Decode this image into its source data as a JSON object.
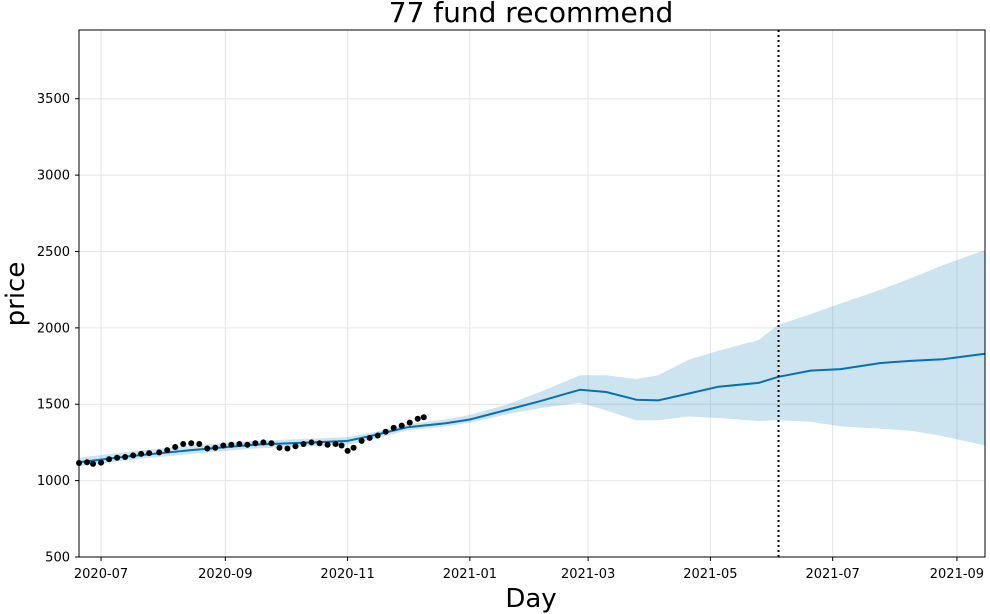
{
  "chart_data": {
    "type": "line",
    "title": "77 fund recommend",
    "xlabel": "Day",
    "ylabel": "price",
    "x_range": [
      "2020-06-20",
      "2021-09-15"
    ],
    "ylim": [
      500,
      3950
    ],
    "grid": true,
    "x_ticks": [
      "2020-07-01",
      "2020-09-01",
      "2020-11-01",
      "2021-01-01",
      "2021-03-01",
      "2021-05-01",
      "2021-07-01",
      "2021-09-01"
    ],
    "x_tick_labels": [
      "2020-07",
      "2020-09",
      "2020-11",
      "2021-01",
      "2021-03",
      "2021-05",
      "2021-07",
      "2021-09"
    ],
    "y_ticks": [
      500,
      1000,
      1500,
      2000,
      2500,
      3000,
      3500
    ],
    "y_tick_labels": [
      "500",
      "1000",
      "1500",
      "2000",
      "2500",
      "3000",
      "3500"
    ],
    "vline": "2021-06-04",
    "colors": {
      "forecast": "#0072B2",
      "band": "#0072B2",
      "observed": "#000000",
      "grid": "#e5e5e5",
      "vline": "#000000"
    },
    "observed": [
      [
        "2020-06-20",
        1115
      ],
      [
        "2020-06-24",
        1120
      ],
      [
        "2020-06-27",
        1110
      ],
      [
        "2020-07-01",
        1118
      ],
      [
        "2020-07-05",
        1140
      ],
      [
        "2020-07-09",
        1150
      ],
      [
        "2020-07-13",
        1155
      ],
      [
        "2020-07-17",
        1165
      ],
      [
        "2020-07-21",
        1175
      ],
      [
        "2020-07-25",
        1180
      ],
      [
        "2020-07-30",
        1185
      ],
      [
        "2020-08-03",
        1200
      ],
      [
        "2020-08-07",
        1220
      ],
      [
        "2020-08-11",
        1240
      ],
      [
        "2020-08-15",
        1245
      ],
      [
        "2020-08-19",
        1240
      ],
      [
        "2020-08-23",
        1210
      ],
      [
        "2020-08-27",
        1215
      ],
      [
        "2020-08-31",
        1230
      ],
      [
        "2020-09-04",
        1235
      ],
      [
        "2020-09-08",
        1240
      ],
      [
        "2020-09-12",
        1235
      ],
      [
        "2020-09-16",
        1245
      ],
      [
        "2020-09-20",
        1250
      ],
      [
        "2020-09-24",
        1245
      ],
      [
        "2020-09-28",
        1215
      ],
      [
        "2020-10-02",
        1210
      ],
      [
        "2020-10-06",
        1225
      ],
      [
        "2020-10-10",
        1240
      ],
      [
        "2020-10-14",
        1250
      ],
      [
        "2020-10-18",
        1245
      ],
      [
        "2020-10-22",
        1235
      ],
      [
        "2020-10-26",
        1240
      ],
      [
        "2020-10-29",
        1230
      ],
      [
        "2020-11-01",
        1195
      ],
      [
        "2020-11-04",
        1215
      ],
      [
        "2020-11-08",
        1260
      ],
      [
        "2020-11-12",
        1280
      ],
      [
        "2020-11-16",
        1295
      ],
      [
        "2020-11-20",
        1320
      ],
      [
        "2020-11-24",
        1345
      ],
      [
        "2020-11-28",
        1360
      ],
      [
        "2020-12-02",
        1380
      ],
      [
        "2020-12-06",
        1405
      ],
      [
        "2020-12-09",
        1415
      ]
    ],
    "forecast": [
      [
        "2020-06-20",
        1120
      ],
      [
        "2020-07-15",
        1160
      ],
      [
        "2020-08-15",
        1200
      ],
      [
        "2020-09-15",
        1235
      ],
      [
        "2020-10-15",
        1250
      ],
      [
        "2020-11-01",
        1260
      ],
      [
        "2020-11-15",
        1300
      ],
      [
        "2020-12-01",
        1350
      ],
      [
        "2020-12-20",
        1375
      ],
      [
        "2021-01-01",
        1400
      ],
      [
        "2021-01-20",
        1465
      ],
      [
        "2021-02-05",
        1520
      ],
      [
        "2021-02-25",
        1595
      ],
      [
        "2021-03-10",
        1580
      ],
      [
        "2021-03-25",
        1530
      ],
      [
        "2021-04-05",
        1525
      ],
      [
        "2021-04-20",
        1570
      ],
      [
        "2021-05-05",
        1615
      ],
      [
        "2021-05-25",
        1640
      ],
      [
        "2021-06-04",
        1680
      ],
      [
        "2021-06-20",
        1720
      ],
      [
        "2021-07-05",
        1730
      ],
      [
        "2021-07-25",
        1770
      ],
      [
        "2021-08-10",
        1785
      ],
      [
        "2021-08-25",
        1795
      ],
      [
        "2021-09-15",
        1830
      ]
    ],
    "upper": [
      [
        "2020-06-20",
        1150
      ],
      [
        "2020-07-15",
        1190
      ],
      [
        "2020-08-15",
        1230
      ],
      [
        "2020-09-15",
        1260
      ],
      [
        "2020-10-15",
        1275
      ],
      [
        "2020-11-01",
        1285
      ],
      [
        "2020-11-15",
        1320
      ],
      [
        "2020-12-01",
        1370
      ],
      [
        "2020-12-20",
        1400
      ],
      [
        "2021-01-01",
        1430
      ],
      [
        "2021-01-20",
        1500
      ],
      [
        "2021-02-05",
        1580
      ],
      [
        "2021-02-25",
        1690
      ],
      [
        "2021-03-10",
        1690
      ],
      [
        "2021-03-25",
        1665
      ],
      [
        "2021-04-05",
        1690
      ],
      [
        "2021-04-20",
        1790
      ],
      [
        "2021-05-05",
        1850
      ],
      [
        "2021-05-25",
        1920
      ],
      [
        "2021-06-04",
        2020
      ],
      [
        "2021-06-20",
        2090
      ],
      [
        "2021-07-05",
        2160
      ],
      [
        "2021-07-25",
        2250
      ],
      [
        "2021-08-10",
        2330
      ],
      [
        "2021-08-25",
        2410
      ],
      [
        "2021-09-15",
        2510
      ]
    ],
    "lower": [
      [
        "2020-06-20",
        1095
      ],
      [
        "2020-07-15",
        1135
      ],
      [
        "2020-08-15",
        1175
      ],
      [
        "2020-09-15",
        1210
      ],
      [
        "2020-10-15",
        1225
      ],
      [
        "2020-11-01",
        1235
      ],
      [
        "2020-11-15",
        1275
      ],
      [
        "2020-12-01",
        1330
      ],
      [
        "2020-12-20",
        1355
      ],
      [
        "2021-01-01",
        1380
      ],
      [
        "2021-01-20",
        1435
      ],
      [
        "2021-02-05",
        1475
      ],
      [
        "2021-02-25",
        1510
      ],
      [
        "2021-03-10",
        1460
      ],
      [
        "2021-03-25",
        1395
      ],
      [
        "2021-04-05",
        1395
      ],
      [
        "2021-04-20",
        1420
      ],
      [
        "2021-05-05",
        1410
      ],
      [
        "2021-05-25",
        1390
      ],
      [
        "2021-06-04",
        1395
      ],
      [
        "2021-06-20",
        1385
      ],
      [
        "2021-07-05",
        1355
      ],
      [
        "2021-07-25",
        1340
      ],
      [
        "2021-08-10",
        1325
      ],
      [
        "2021-08-25",
        1290
      ],
      [
        "2021-09-15",
        1230
      ]
    ]
  }
}
